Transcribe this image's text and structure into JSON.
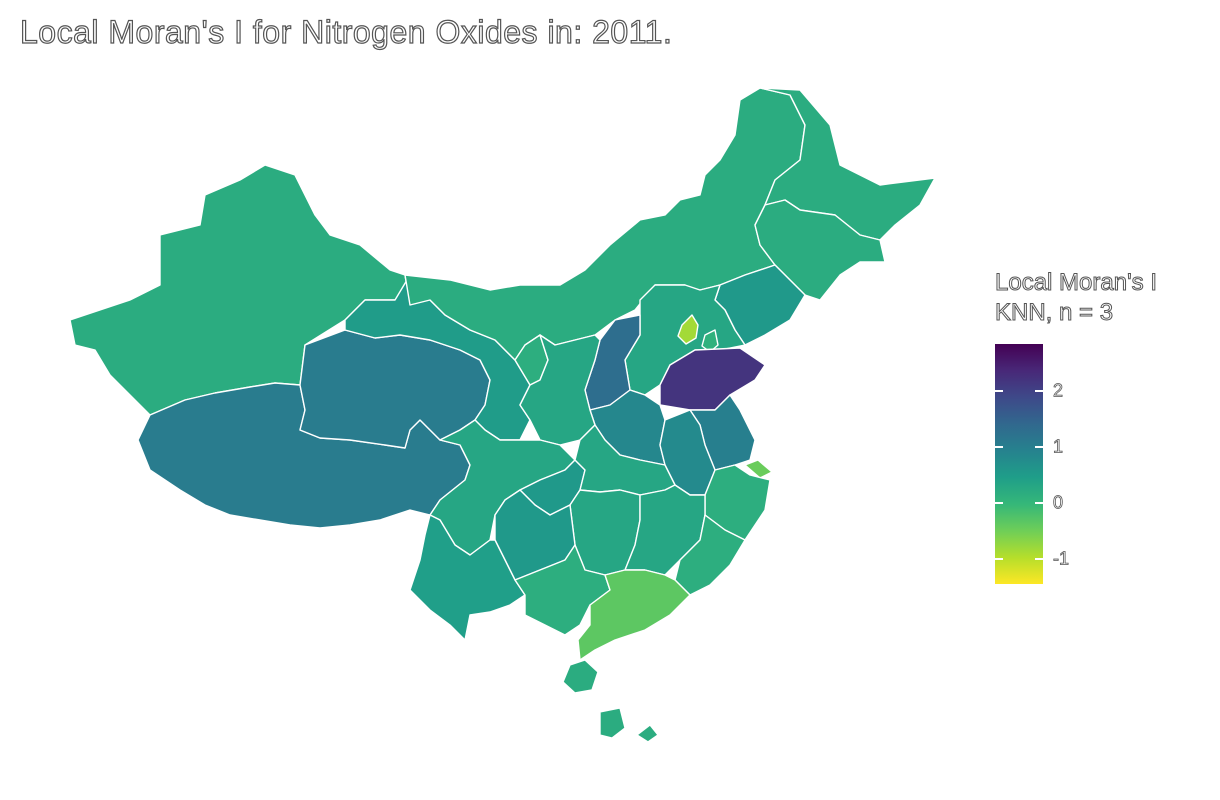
{
  "title": "Local Moran's I for Nitrogen Oxides in: 2011.",
  "legend": {
    "title_line1": "Local Moran's I",
    "title_line2": "KNN, n = 3",
    "min": -1.45,
    "max": 2.85,
    "ticks": [
      {
        "value": 2,
        "label": "2"
      },
      {
        "value": 1,
        "label": "1"
      },
      {
        "value": 0,
        "label": "0"
      },
      {
        "value": -1,
        "label": "-1"
      }
    ],
    "colors": [
      "#440154",
      "#482878",
      "#3e4989",
      "#31688e",
      "#26828e",
      "#1f9e89",
      "#35b779",
      "#6ece58",
      "#b5de2b",
      "#fde725"
    ]
  },
  "regions": [
    {
      "name": "Xinjiang",
      "value": 0.2
    },
    {
      "name": "Tibet",
      "value": 1.05
    },
    {
      "name": "Qinghai",
      "value": 1.05
    },
    {
      "name": "Gansu",
      "value": 0.5
    },
    {
      "name": "Inner Mongolia",
      "value": 0.2
    },
    {
      "name": "Heilongjiang",
      "value": 0.2
    },
    {
      "name": "Jilin",
      "value": 0.2
    },
    {
      "name": "Liaoning",
      "value": 0.55
    },
    {
      "name": "Hebei",
      "value": 0.3
    },
    {
      "name": "Beijing",
      "value": -0.85
    },
    {
      "name": "Tianjin",
      "value": 0.1
    },
    {
      "name": "Shanxi",
      "value": 1.3
    },
    {
      "name": "Shandong",
      "value": 2.2
    },
    {
      "name": "Henan",
      "value": 0.85
    },
    {
      "name": "Jiangsu",
      "value": 1.0
    },
    {
      "name": "Shanghai",
      "value": -0.45
    },
    {
      "name": "Anhui",
      "value": 0.8
    },
    {
      "name": "Zhejiang",
      "value": 0.15
    },
    {
      "name": "Ningxia",
      "value": 0.15
    },
    {
      "name": "Shaanxi",
      "value": 0.3
    },
    {
      "name": "Sichuan",
      "value": 0.3
    },
    {
      "name": "Chongqing",
      "value": 0.55
    },
    {
      "name": "Hubei",
      "value": 0.3
    },
    {
      "name": "Hunan",
      "value": 0.3
    },
    {
      "name": "Jiangxi",
      "value": 0.3
    },
    {
      "name": "Fujian",
      "value": 0.15
    },
    {
      "name": "Guizhou",
      "value": 0.55
    },
    {
      "name": "Yunnan",
      "value": 0.45
    },
    {
      "name": "Guangxi",
      "value": 0.15
    },
    {
      "name": "Guangdong",
      "value": -0.35
    },
    {
      "name": "Hainan",
      "value": 0.2
    },
    {
      "name": "Taiwan",
      "value": 0.2
    },
    {
      "name": "Hong Kong",
      "value": 0.2
    }
  ]
}
